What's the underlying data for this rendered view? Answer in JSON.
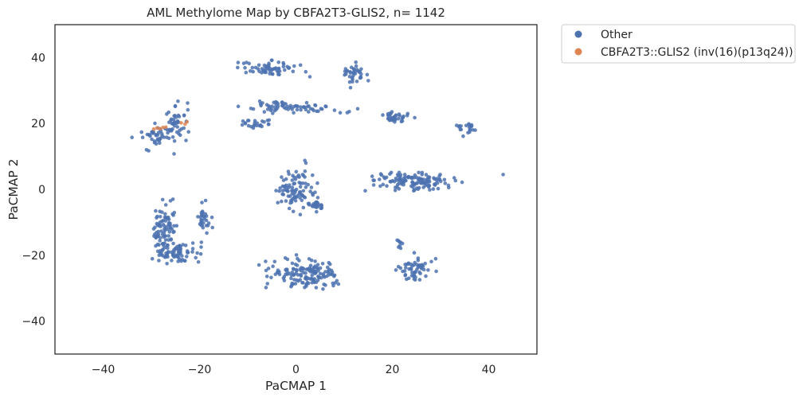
{
  "chart_data": {
    "type": "scatter",
    "title": "AML Methylome Map by CBFA2T3-GLIS2, n= 1142",
    "xlabel": "PaCMAP 1",
    "ylabel": "PaCMAP 2",
    "xlim": [
      -50,
      50
    ],
    "ylim": [
      -50,
      50
    ],
    "xticks": [
      -40,
      -20,
      0,
      20,
      40
    ],
    "yticks": [
      -40,
      -20,
      0,
      20,
      40
    ],
    "grid": false,
    "legend_position": "outside-top-right",
    "series": [
      {
        "name": "Other",
        "color": "#4c72b0",
        "clusters": [
          {
            "cx": -5,
            "cy": 36.5,
            "sx": 3.2,
            "sy": 1.0,
            "n": 60
          },
          {
            "cx": 12.0,
            "cy": 35.5,
            "sx": 1.0,
            "sy": 1.8,
            "n": 35
          },
          {
            "cx": 0,
            "cy": 25.0,
            "sx": 4.5,
            "sy": 0.9,
            "n": 70
          },
          {
            "cx": -8,
            "cy": 20.0,
            "sx": 2.0,
            "sy": 0.8,
            "n": 25
          },
          {
            "cx": 20.5,
            "cy": 22.0,
            "sx": 1.4,
            "sy": 0.9,
            "n": 35
          },
          {
            "cx": 35.5,
            "cy": 19.0,
            "sx": 1.0,
            "sy": 1.0,
            "n": 20
          },
          {
            "cx": -25.0,
            "cy": 20.0,
            "sx": 1.2,
            "sy": 3.0,
            "n": 45
          },
          {
            "cx": -28.5,
            "cy": 16.0,
            "sx": 1.8,
            "sy": 1.5,
            "n": 40
          },
          {
            "cx": 0.0,
            "cy": 0.0,
            "sx": 1.8,
            "sy": 3.0,
            "n": 90
          },
          {
            "cx": 4.0,
            "cy": -4.5,
            "sx": 1.0,
            "sy": 1.0,
            "n": 25
          },
          {
            "cx": 24.0,
            "cy": 2.5,
            "sx": 4.0,
            "sy": 1.4,
            "n": 130
          },
          {
            "cx": -27.5,
            "cy": -12.0,
            "sx": 1.3,
            "sy": 3.5,
            "n": 90
          },
          {
            "cx": -24.5,
            "cy": -19.5,
            "sx": 2.2,
            "sy": 1.3,
            "n": 70
          },
          {
            "cx": -19.0,
            "cy": -9.0,
            "sx": 0.8,
            "sy": 2.5,
            "n": 30
          },
          {
            "cx": 2.0,
            "cy": -25.5,
            "sx": 3.5,
            "sy": 2.3,
            "n": 150
          },
          {
            "cx": 25.0,
            "cy": -24.5,
            "sx": 1.8,
            "sy": 1.6,
            "n": 55
          },
          {
            "cx": 21.5,
            "cy": -16.0,
            "sx": 0.3,
            "sy": 1.0,
            "n": 8
          }
        ],
        "extra_points": [
          [
            -12,
            38.5
          ],
          [
            43,
            4.5
          ],
          [
            -31,
            12
          ],
          [
            -19.5,
            -4
          ],
          [
            15,
            33
          ],
          [
            8,
            24
          ]
        ]
      },
      {
        "name": "CBFA2T3::GLIS2 (inv(16)(p13q24))",
        "color": "#dd8452",
        "points": [
          [
            -29.5,
            18.3
          ],
          [
            -28.8,
            18.6
          ],
          [
            -28.2,
            18.4
          ],
          [
            -27.6,
            18.8
          ],
          [
            -23.8,
            20.2
          ],
          [
            -23.0,
            19.8
          ],
          [
            -22.6,
            20.5
          ],
          [
            -27.0,
            18.9
          ]
        ]
      }
    ]
  }
}
